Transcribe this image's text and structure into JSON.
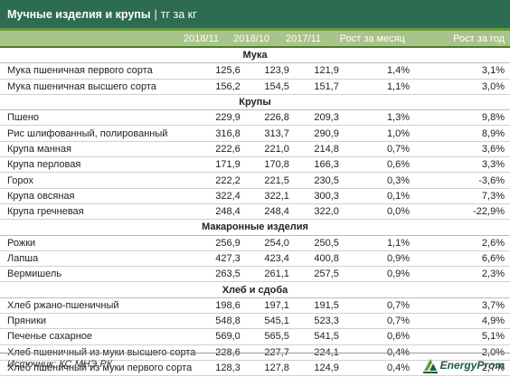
{
  "title": {
    "main": "Мучные изделия и крупы",
    "separator": "|",
    "unit": "тг за кг"
  },
  "columns": [
    "2018/11",
    "2018/10",
    "2017/11",
    "Рост за месяц",
    "Рост за год"
  ],
  "sections": [
    {
      "name": "Мука",
      "rows": [
        [
          "Мука пшеничная первого сорта",
          "125,6",
          "123,9",
          "121,9",
          "1,4%",
          "3,1%"
        ],
        [
          "Мука пшеничная высшего сорта",
          "156,2",
          "154,5",
          "151,7",
          "1,1%",
          "3,0%"
        ]
      ]
    },
    {
      "name": "Крупы",
      "rows": [
        [
          "Пшено",
          "229,9",
          "226,8",
          "209,3",
          "1,3%",
          "9,8%"
        ],
        [
          "Рис шлифованный, полированный",
          "316,8",
          "313,7",
          "290,9",
          "1,0%",
          "8,9%"
        ],
        [
          "Крупа манная",
          "222,6",
          "221,0",
          "214,8",
          "0,7%",
          "3,6%"
        ],
        [
          "Крупа перловая",
          "171,9",
          "170,8",
          "166,3",
          "0,6%",
          "3,3%"
        ],
        [
          "Горох",
          "222,2",
          "221,5",
          "230,5",
          "0,3%",
          "-3,6%"
        ],
        [
          "Крупа овсяная",
          "322,4",
          "322,1",
          "300,3",
          "0,1%",
          "7,3%"
        ],
        [
          "Крупа гречневая",
          "248,4",
          "248,4",
          "322,0",
          "0,0%",
          "-22,9%"
        ]
      ]
    },
    {
      "name": "Макаронные изделия",
      "rows": [
        [
          "Рожки",
          "256,9",
          "254,0",
          "250,5",
          "1,1%",
          "2,6%"
        ],
        [
          "Лапша",
          "427,3",
          "423,4",
          "400,8",
          "0,9%",
          "6,6%"
        ],
        [
          "Вермишель",
          "263,5",
          "261,1",
          "257,5",
          "0,9%",
          "2,3%"
        ]
      ]
    },
    {
      "name": "Хлеб и сдоба",
      "rows": [
        [
          "Хлеб ржано-пшеничный",
          "198,6",
          "197,1",
          "191,5",
          "0,7%",
          "3,7%"
        ],
        [
          "Пряники",
          "548,8",
          "545,1",
          "523,3",
          "0,7%",
          "4,9%"
        ],
        [
          "Печенье сахарное",
          "569,0",
          "565,5",
          "541,5",
          "0,6%",
          "5,1%"
        ],
        [
          "Хлеб пшеничный из муки высшего сорта",
          "228,6",
          "227,7",
          "224,1",
          "0,4%",
          "2,0%"
        ],
        [
          "Хлеб пшеничный из муки первого сорта",
          "128,3",
          "127,8",
          "124,9",
          "0,4%",
          "2,7%"
        ]
      ]
    }
  ],
  "footer": {
    "source": "Источник: КС МНЭ РК",
    "logo_text": "EnergyProm"
  },
  "colors": {
    "title_bg": "#2d6b52",
    "header_bg": "#a8c48a",
    "accent": "#6a9a3a"
  }
}
